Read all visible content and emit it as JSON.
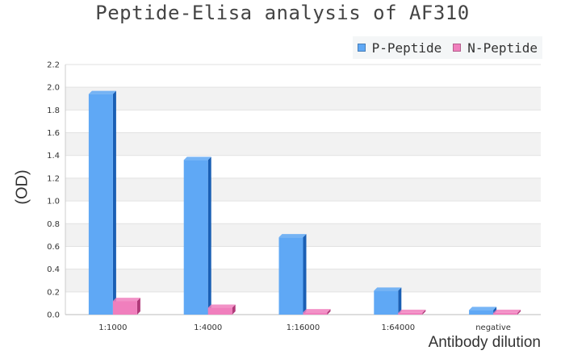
{
  "chart_data": {
    "type": "bar",
    "title": "Peptide-Elisa analysis of AF310",
    "xlabel": "Antibody dilution",
    "ylabel": "(OD)",
    "categories": [
      "1:1000",
      "1:4000",
      "1:16000",
      "1:64000",
      "negative"
    ],
    "series": [
      {
        "name": "P-Peptide",
        "values": [
          1.94,
          1.36,
          0.68,
          0.21,
          0.04
        ],
        "color": "#5fa8f5",
        "side_color": "#1a5fb4"
      },
      {
        "name": "N-Peptide",
        "values": [
          0.12,
          0.06,
          0.02,
          0.015,
          0.015
        ],
        "color": "#f07fbd",
        "side_color": "#b03a7a"
      }
    ],
    "ylim": [
      0,
      2.2
    ],
    "yticks": [
      "0.0",
      "0.2",
      "0.4",
      "0.6",
      "0.8",
      "1.0",
      "1.2",
      "1.4",
      "1.6",
      "1.8",
      "2.0",
      "2.2"
    ],
    "grid": true,
    "legend_position": "top-right"
  }
}
